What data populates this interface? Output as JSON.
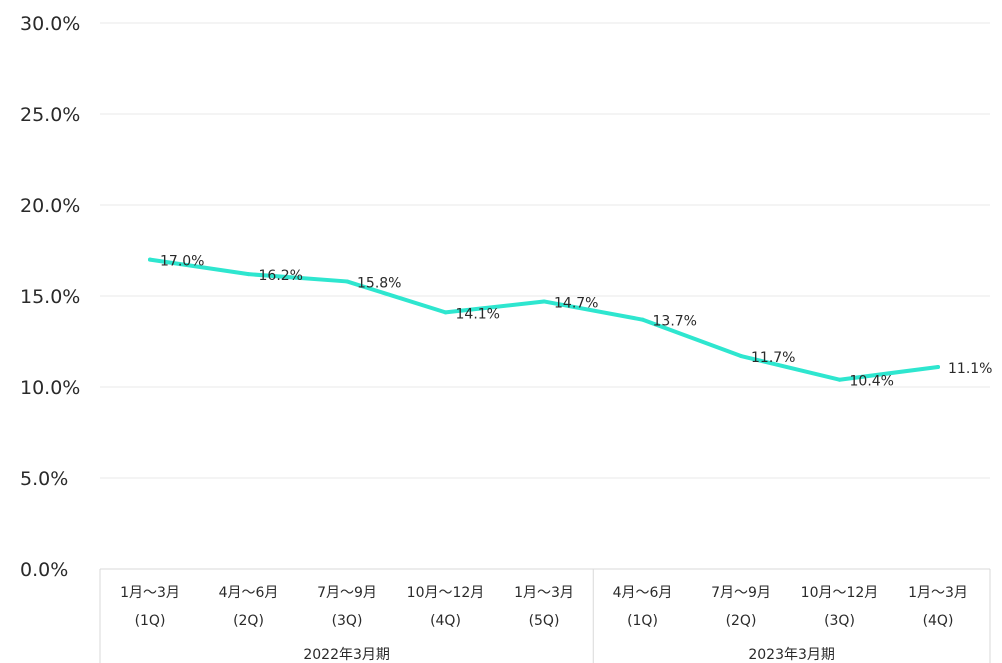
{
  "chart_data": {
    "type": "line",
    "title": "",
    "xlabel": "",
    "ylabel": "",
    "y_unit": "%",
    "ylim": [
      0,
      30
    ],
    "yticks": [
      "0.0%",
      "5.0%",
      "10.0%",
      "15.0%",
      "20.0%",
      "25.0%",
      "30.0%"
    ],
    "grid": true,
    "line_color": "#2ee6cf",
    "categories": [
      {
        "line1": "1月〜3月",
        "line2": "(1Q)"
      },
      {
        "line1": "4月〜6月",
        "line2": "(2Q)"
      },
      {
        "line1": "7月〜9月",
        "line2": "(3Q)"
      },
      {
        "line1": "10月〜12月",
        "line2": "(4Q)"
      },
      {
        "line1": "1月〜3月",
        "line2": "(5Q)"
      },
      {
        "line1": "4月〜6月",
        "line2": "(1Q)"
      },
      {
        "line1": "7月〜9月",
        "line2": "(2Q)"
      },
      {
        "line1": "10月〜12月",
        "line2": "(3Q)"
      },
      {
        "line1": "1月〜3月",
        "line2": "(4Q)"
      }
    ],
    "groups": [
      {
        "label": "2022年3月期",
        "start": 0,
        "end": 4
      },
      {
        "label": "2023年3月期",
        "start": 5,
        "end": 8
      }
    ],
    "series": [
      {
        "values": [
          17.0,
          16.2,
          15.8,
          14.1,
          14.7,
          13.7,
          11.7,
          10.4,
          11.1
        ],
        "labels": [
          "17.0%",
          "16.2%",
          "15.8%",
          "14.1%",
          "14.7%",
          "13.7%",
          "11.7%",
          "10.4%",
          "11.1%"
        ]
      }
    ]
  }
}
